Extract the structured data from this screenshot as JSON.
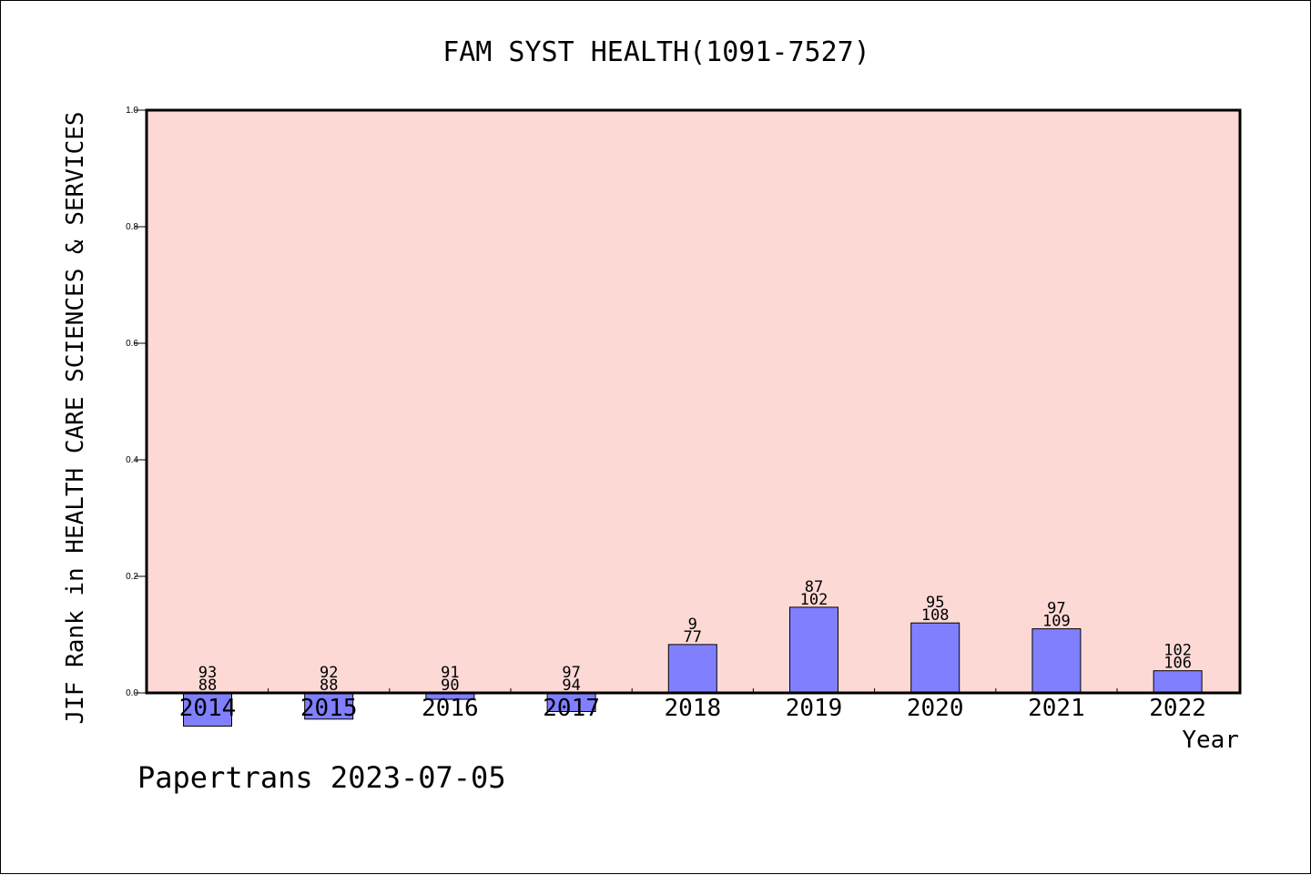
{
  "chart_data": {
    "type": "bar",
    "title": "FAM SYST HEALTH(1091-7527)",
    "xlabel": "Year",
    "ylabel": "JIF Rank in HEALTH CARE SCIENCES & SERVICES",
    "ylim": [
      0,
      1.0
    ],
    "yticks": [
      "0.0",
      "0.2",
      "0.4",
      "0.6",
      "0.8",
      "1.0"
    ],
    "categories": [
      "2014",
      "2015",
      "2016",
      "2017",
      "2018",
      "2019",
      "2020",
      "2021",
      "2022"
    ],
    "values": [
      -0.057,
      -0.045,
      -0.011,
      -0.032,
      0.083,
      0.147,
      0.12,
      0.11,
      0.038
    ],
    "labels_top": [
      "93",
      "92",
      "91",
      "97",
      "9",
      "87",
      "95",
      "97",
      "102"
    ],
    "labels_bottom": [
      "88",
      "88",
      "90",
      "94",
      "77",
      "102",
      "108",
      "109",
      "106"
    ],
    "grid": false,
    "colors": {
      "plot_bg": "#fdd9d5",
      "bar": "#8080ff",
      "axis": "#000000"
    }
  },
  "footer": {
    "watermark": "Papertrans 2023-07-05"
  }
}
